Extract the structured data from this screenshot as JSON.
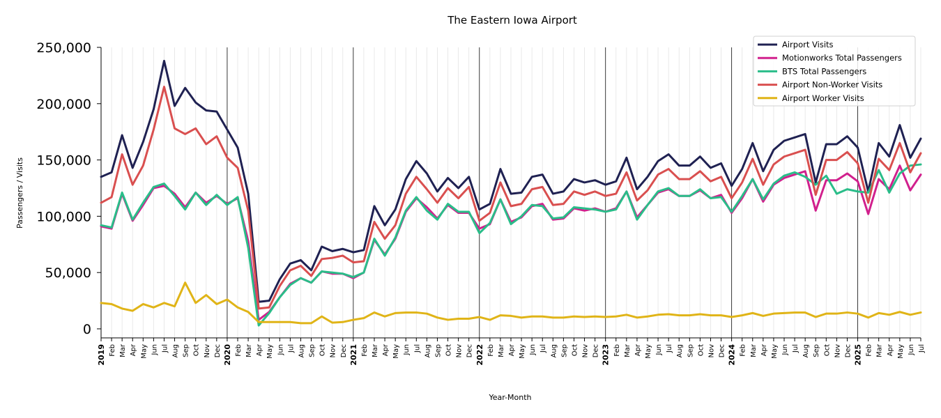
{
  "chart_data": {
    "type": "line",
    "title": "The Eastern Iowa Airport",
    "xlabel": "Year-Month",
    "ylabel": "Passengers / Visits",
    "ylim": [
      -8000,
      252000
    ],
    "yticks": [
      0,
      50000,
      100000,
      150000,
      200000,
      250000
    ],
    "ytick_labels": [
      "0",
      "50,000",
      "100,000",
      "150,000",
      "200,000",
      "250,000"
    ],
    "legend_position": "top-right",
    "grid": "vertical monthly gridlines, darker lines at year boundaries",
    "x_labels": [
      "2019",
      "Feb",
      "Mar",
      "Apr",
      "May",
      "Jun",
      "Jul",
      "Aug",
      "Sep",
      "Oct",
      "Nov",
      "Dec",
      "2020",
      "Feb",
      "Mar",
      "Apr",
      "May",
      "Jun",
      "Jul",
      "Aug",
      "Sep",
      "Oct",
      "Nov",
      "Dec",
      "2021",
      "Feb",
      "Mar",
      "Apr",
      "May",
      "Jun",
      "Jul",
      "Aug",
      "Sep",
      "Oct",
      "Nov",
      "Dec",
      "2022",
      "Feb",
      "Mar",
      "Apr",
      "May",
      "Jun",
      "Jul",
      "Aug",
      "Sep",
      "Oct",
      "Nov",
      "Dec",
      "2023",
      "Feb",
      "Mar",
      "Apr",
      "May",
      "Jun",
      "Jul",
      "Aug",
      "Sep",
      "Oct",
      "Nov",
      "Dec",
      "2024",
      "Feb",
      "Mar",
      "Apr",
      "May",
      "Jun",
      "Jul",
      "Aug",
      "Sep",
      "Oct",
      "Nov",
      "Dec",
      "2025",
      "Feb",
      "Mar",
      "Apr",
      "May",
      "Jun",
      "Jul"
    ],
    "series": [
      {
        "name": "Airport Visits",
        "color": "#1f2152",
        "values": [
          135000,
          139000,
          172000,
          143000,
          166000,
          195000,
          238000,
          198000,
          214000,
          201000,
          194000,
          193000,
          177000,
          161000,
          120000,
          24000,
          25000,
          44000,
          58000,
          61000,
          52000,
          73000,
          69000,
          71000,
          68000,
          70000,
          109000,
          92000,
          106000,
          133000,
          149000,
          138000,
          122000,
          134000,
          125000,
          135000,
          106000,
          111000,
          142000,
          120000,
          121000,
          135000,
          137000,
          120000,
          122000,
          133000,
          130000,
          132000,
          128000,
          131000,
          152000,
          124000,
          135000,
          149000,
          155000,
          145000,
          145000,
          153000,
          143000,
          147000,
          127000,
          142000,
          165000,
          140000,
          159000,
          167000,
          170000,
          173000,
          130000,
          164000,
          164000,
          171000,
          161000,
          122000,
          165000,
          153000,
          181000,
          152000,
          169000
        ]
      },
      {
        "name": "Motionworks Total Passengers",
        "color": "#d1208d",
        "values": [
          91000,
          89000,
          120000,
          96000,
          110000,
          125000,
          127000,
          120000,
          108000,
          121000,
          112000,
          118000,
          111000,
          116000,
          78000,
          8000,
          15000,
          28000,
          40000,
          45000,
          41000,
          51000,
          49000,
          49000,
          45000,
          50000,
          79000,
          66000,
          80000,
          104000,
          116000,
          108000,
          98000,
          110000,
          103000,
          103000,
          89000,
          93000,
          115000,
          95000,
          99000,
          109000,
          111000,
          97000,
          98000,
          107000,
          105000,
          107000,
          104000,
          107000,
          122000,
          99000,
          110000,
          121000,
          124000,
          118000,
          118000,
          123000,
          116000,
          119000,
          103000,
          116000,
          133000,
          113000,
          128000,
          134000,
          137000,
          140000,
          105000,
          132000,
          132000,
          138000,
          131000,
          102000,
          133000,
          124000,
          145000,
          123000,
          137000
        ]
      },
      {
        "name": "BTS Total Passengers",
        "color": "#2abd89",
        "values": [
          92000,
          90000,
          121000,
          97000,
          112000,
          126000,
          129000,
          118000,
          106000,
          121000,
          110000,
          119000,
          110000,
          117000,
          72000,
          3000,
          14000,
          28000,
          39000,
          45000,
          41000,
          51000,
          50000,
          49000,
          46000,
          50000,
          80000,
          65000,
          81000,
          105000,
          117000,
          105000,
          97000,
          111000,
          104000,
          104000,
          85000,
          94000,
          115000,
          93000,
          100000,
          110000,
          109000,
          98000,
          99000,
          108000,
          107000,
          106000,
          104000,
          106000,
          122000,
          97000,
          110000,
          122000,
          125000,
          118000,
          118000,
          124000,
          116000,
          117000,
          104000,
          118000,
          133000,
          115000,
          129000,
          136000,
          139000,
          135000,
          128000,
          136000,
          120000,
          124000,
          122000,
          121000,
          141000,
          121000,
          138000,
          145000,
          146000
        ]
      },
      {
        "name": "Airport Non-Worker Visits",
        "color": "#d94f4f",
        "values": [
          112000,
          117000,
          155000,
          128000,
          145000,
          177000,
          215000,
          178000,
          173000,
          178000,
          164000,
          171000,
          152000,
          143000,
          105000,
          18000,
          19000,
          38000,
          52000,
          56000,
          47000,
          62000,
          63000,
          65000,
          59000,
          60000,
          95000,
          80000,
          92000,
          120000,
          135000,
          124000,
          112000,
          125000,
          116000,
          126000,
          96000,
          103000,
          130000,
          109000,
          111000,
          124000,
          126000,
          110000,
          111000,
          122000,
          119000,
          122000,
          118000,
          120000,
          139000,
          114000,
          123000,
          137000,
          142000,
          133000,
          133000,
          140000,
          131000,
          135000,
          116000,
          130000,
          151000,
          128000,
          146000,
          153000,
          156000,
          159000,
          119000,
          150000,
          150000,
          157000,
          147000,
          112000,
          151000,
          141000,
          165000,
          139000,
          156000
        ]
      },
      {
        "name": "Airport Worker Visits",
        "color": "#e0b417",
        "values": [
          23000,
          22000,
          18000,
          16000,
          22000,
          19000,
          23000,
          20000,
          41000,
          23000,
          30000,
          22000,
          26000,
          19000,
          15000,
          6000,
          6000,
          6000,
          6000,
          5000,
          5000,
          11000,
          5500,
          6000,
          8000,
          9500,
          14500,
          11000,
          14000,
          14500,
          14500,
          13500,
          10000,
          8000,
          9000,
          9000,
          10500,
          8000,
          12000,
          11500,
          10000,
          11000,
          11000,
          10000,
          10000,
          11000,
          10500,
          11000,
          10500,
          11000,
          12500,
          10000,
          11000,
          12500,
          13000,
          12000,
          12000,
          13000,
          12000,
          12000,
          10500,
          12000,
          14000,
          11500,
          13500,
          14000,
          14500,
          14500,
          10500,
          13500,
          13500,
          14500,
          13500,
          10000,
          14000,
          12500,
          15000,
          12500,
          14500
        ]
      }
    ]
  }
}
